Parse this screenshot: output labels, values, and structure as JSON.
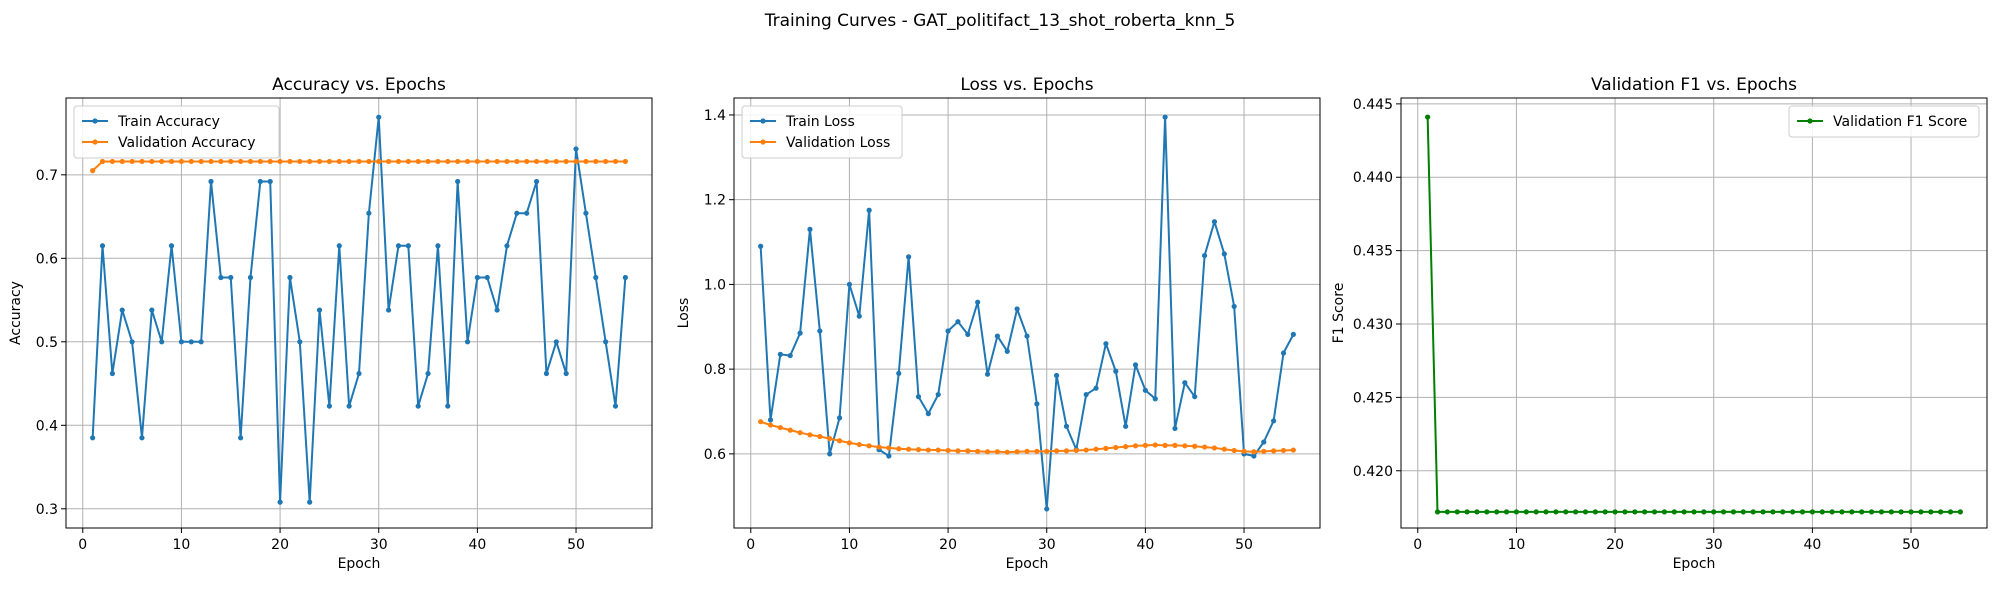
{
  "suptitle": "Training Curves - GAT_politifact_13_shot_roberta_knn_5",
  "colors": {
    "blue": "#1f77b4",
    "orange": "#ff7f0e",
    "green": "#008000",
    "grid": "#b0b0b0"
  },
  "chart_data": [
    {
      "type": "line",
      "title": "Accuracy vs. Epochs",
      "xlabel": "Epoch",
      "ylabel": "Accuracy",
      "xlim": [
        -1.7,
        57.7
      ],
      "ylim": [
        0.277,
        0.792
      ],
      "xticks": [
        0,
        10,
        20,
        30,
        40,
        50
      ],
      "yticks": [
        0.3,
        0.4,
        0.5,
        0.6,
        0.7
      ],
      "ytick_labels": [
        "0.3",
        "0.4",
        "0.5",
        "0.6",
        "0.7"
      ],
      "grid": true,
      "legend": "upper left",
      "x_start": 1,
      "series": [
        {
          "name": "Train Accuracy",
          "color": "#1f77b4",
          "values": [
            0.385,
            0.615,
            0.462,
            0.538,
            0.5,
            0.385,
            0.538,
            0.5,
            0.615,
            0.5,
            0.5,
            0.5,
            0.692,
            0.577,
            0.577,
            0.385,
            0.577,
            0.692,
            0.692,
            0.308,
            0.577,
            0.5,
            0.308,
            0.538,
            0.423,
            0.615,
            0.423,
            0.462,
            0.654,
            0.769,
            0.538,
            0.615,
            0.615,
            0.423,
            0.462,
            0.615,
            0.423,
            0.692,
            0.5,
            0.577,
            0.577,
            0.538,
            0.615,
            0.654,
            0.654,
            0.692,
            0.462,
            0.5,
            0.462,
            0.731,
            0.654,
            0.577,
            0.5,
            0.423,
            0.577
          ]
        },
        {
          "name": "Validation Accuracy",
          "color": "#ff7f0e",
          "values": [
            0.705,
            0.716,
            0.716,
            0.716,
            0.716,
            0.716,
            0.716,
            0.716,
            0.716,
            0.716,
            0.716,
            0.716,
            0.716,
            0.716,
            0.716,
            0.716,
            0.716,
            0.716,
            0.716,
            0.716,
            0.716,
            0.716,
            0.716,
            0.716,
            0.716,
            0.716,
            0.716,
            0.716,
            0.716,
            0.716,
            0.716,
            0.716,
            0.716,
            0.716,
            0.716,
            0.716,
            0.716,
            0.716,
            0.716,
            0.716,
            0.716,
            0.716,
            0.716,
            0.716,
            0.716,
            0.716,
            0.716,
            0.716,
            0.716,
            0.716,
            0.716,
            0.716,
            0.716,
            0.716,
            0.716
          ]
        }
      ]
    },
    {
      "type": "line",
      "title": "Loss vs. Epochs",
      "xlabel": "Epoch",
      "ylabel": "Loss",
      "xlim": [
        -1.7,
        57.7
      ],
      "ylim": [
        0.425,
        1.44
      ],
      "xticks": [
        0,
        10,
        20,
        30,
        40,
        50
      ],
      "yticks": [
        0.6,
        0.8,
        1.0,
        1.2,
        1.4
      ],
      "ytick_labels": [
        "0.6",
        "0.8",
        "1.0",
        "1.2",
        "1.4"
      ],
      "grid": true,
      "legend": "upper left",
      "x_start": 1,
      "series": [
        {
          "name": "Train Loss",
          "color": "#1f77b4",
          "values": [
            1.09,
            0.68,
            0.835,
            0.832,
            0.885,
            1.13,
            0.89,
            0.6,
            0.685,
            1.0,
            0.925,
            1.175,
            0.61,
            0.595,
            0.79,
            1.065,
            0.735,
            0.695,
            0.74,
            0.89,
            0.912,
            0.882,
            0.958,
            0.788,
            0.878,
            0.842,
            0.942,
            0.878,
            0.718,
            0.47,
            0.785,
            0.665,
            0.61,
            0.74,
            0.755,
            0.86,
            0.795,
            0.665,
            0.81,
            0.75,
            0.73,
            1.395,
            0.66,
            0.768,
            0.735,
            1.068,
            1.148,
            1.072,
            0.948,
            0.6,
            0.595,
            0.628,
            0.678,
            0.838,
            0.882
          ]
        },
        {
          "name": "Validation Loss",
          "color": "#ff7f0e",
          "values": [
            0.676,
            0.668,
            0.662,
            0.656,
            0.65,
            0.645,
            0.641,
            0.636,
            0.631,
            0.626,
            0.622,
            0.619,
            0.616,
            0.614,
            0.612,
            0.611,
            0.61,
            0.609,
            0.609,
            0.608,
            0.607,
            0.607,
            0.606,
            0.605,
            0.605,
            0.604,
            0.605,
            0.606,
            0.606,
            0.606,
            0.607,
            0.607,
            0.608,
            0.609,
            0.611,
            0.613,
            0.615,
            0.617,
            0.619,
            0.62,
            0.621,
            0.62,
            0.62,
            0.619,
            0.618,
            0.616,
            0.614,
            0.611,
            0.608,
            0.606,
            0.605,
            0.606,
            0.607,
            0.608,
            0.609
          ]
        }
      ]
    },
    {
      "type": "line",
      "title": "Validation F1 vs. Epochs",
      "xlabel": "Epoch",
      "ylabel": "F1 Score",
      "xlim": [
        -1.7,
        57.7
      ],
      "ylim": [
        0.4161,
        0.4454
      ],
      "xticks": [
        0,
        10,
        20,
        30,
        40,
        50
      ],
      "yticks": [
        0.42,
        0.425,
        0.43,
        0.435,
        0.44,
        0.445
      ],
      "ytick_labels": [
        "0.420",
        "0.425",
        "0.430",
        "0.435",
        "0.440",
        "0.445"
      ],
      "grid": true,
      "legend": "upper right",
      "x_start": 1,
      "series": [
        {
          "name": "Validation F1 Score",
          "color": "#008000",
          "values": [
            0.4441,
            0.4172,
            0.4172,
            0.4172,
            0.4172,
            0.4172,
            0.4172,
            0.4172,
            0.4172,
            0.4172,
            0.4172,
            0.4172,
            0.4172,
            0.4172,
            0.4172,
            0.4172,
            0.4172,
            0.4172,
            0.4172,
            0.4172,
            0.4172,
            0.4172,
            0.4172,
            0.4172,
            0.4172,
            0.4172,
            0.4172,
            0.4172,
            0.4172,
            0.4172,
            0.4172,
            0.4172,
            0.4172,
            0.4172,
            0.4172,
            0.4172,
            0.4172,
            0.4172,
            0.4172,
            0.4172,
            0.4172,
            0.4172,
            0.4172,
            0.4172,
            0.4172,
            0.4172,
            0.4172,
            0.4172,
            0.4172,
            0.4172,
            0.4172,
            0.4172,
            0.4172,
            0.4172,
            0.4172
          ]
        }
      ]
    }
  ]
}
